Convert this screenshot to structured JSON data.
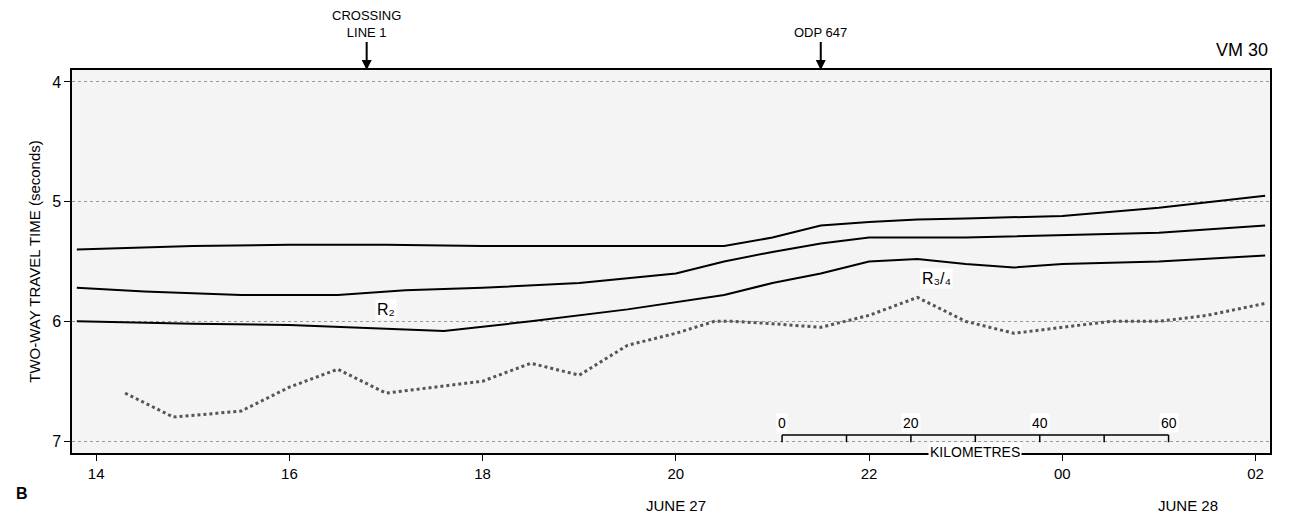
{
  "chart_data": {
    "type": "line",
    "y_label": "TWO-WAY TRAVEL TIME (seconds)",
    "corner_label": "VM 30",
    "panel_letter": "B",
    "xlim": [
      13.75,
      26.15
    ],
    "xticks": [
      14,
      16,
      18,
      20,
      22,
      {
        "value": 24,
        "label": "00"
      },
      {
        "value": 26,
        "label": "02"
      }
    ],
    "ylim": [
      3.9,
      7.1
    ],
    "yticks": [
      4,
      5,
      6,
      7
    ],
    "grid": true,
    "series": [
      {
        "color": "#000000",
        "line_style": "solid",
        "x": [
          13.8,
          15,
          16,
          17,
          18,
          19,
          20,
          20.5,
          21,
          21.5,
          22,
          22.5,
          23,
          24,
          25,
          26.1
        ],
        "values": [
          5.4,
          5.37,
          5.36,
          5.36,
          5.37,
          5.37,
          5.37,
          5.37,
          5.3,
          5.2,
          5.17,
          5.15,
          5.14,
          5.12,
          5.05,
          4.95
        ]
      },
      {
        "color": "#000000",
        "line_style": "solid",
        "x": [
          13.8,
          14.5,
          15.5,
          16.5,
          17.2,
          18,
          19,
          20,
          20.5,
          21,
          21.5,
          22,
          23,
          24,
          25,
          26.1
        ],
        "values": [
          5.72,
          5.75,
          5.78,
          5.78,
          5.74,
          5.72,
          5.68,
          5.6,
          5.5,
          5.42,
          5.35,
          5.3,
          5.3,
          5.28,
          5.26,
          5.2
        ]
      },
      {
        "color": "#000000",
        "line_style": "solid",
        "x": [
          13.8,
          15,
          16,
          17,
          17.6,
          18.5,
          19.5,
          20.5,
          21,
          21.5,
          22,
          22.5,
          23,
          23.5,
          24,
          25,
          26.1
        ],
        "values": [
          6.0,
          6.02,
          6.03,
          6.06,
          6.08,
          6.0,
          5.9,
          5.78,
          5.68,
          5.6,
          5.5,
          5.48,
          5.52,
          5.55,
          5.52,
          5.5,
          5.45
        ]
      },
      {
        "color": "#555555",
        "line_style": "dotted",
        "x": [
          14.3,
          14.8,
          15.5,
          16,
          16.5,
          17,
          17.5,
          18,
          18.5,
          19,
          19.5,
          20,
          20.4,
          20.6,
          21,
          21.5,
          22,
          22.5,
          23,
          23.5,
          24,
          24.5,
          25,
          25.5,
          26.1
        ],
        "values": [
          6.6,
          6.8,
          6.75,
          6.55,
          6.4,
          6.6,
          6.55,
          6.5,
          6.35,
          6.45,
          6.2,
          6.1,
          6.0,
          6.0,
          6.02,
          6.05,
          5.95,
          5.8,
          6.0,
          6.1,
          6.05,
          6.0,
          6.0,
          5.95,
          5.85
        ]
      }
    ],
    "annotations": [
      {
        "text": "R₂",
        "x": 17.0,
        "y": 5.9
      },
      {
        "text": "R₃/₄",
        "x": 22.7,
        "y": 5.64
      }
    ],
    "callouts": [
      {
        "text": "CROSSING LINE 1",
        "x": 16.8
      },
      {
        "text": "ODP 647",
        "x": 21.5
      }
    ],
    "date_labels": [
      {
        "text": "JUNE 27",
        "x": 20
      },
      {
        "text": "JUNE 28",
        "x": 25.3
      }
    ],
    "scale_bar": {
      "label": "KILOMETRES",
      "ticks": [
        0,
        20,
        40,
        60
      ],
      "x": [
        21.1,
        25.1
      ],
      "y": 6.95
    }
  }
}
